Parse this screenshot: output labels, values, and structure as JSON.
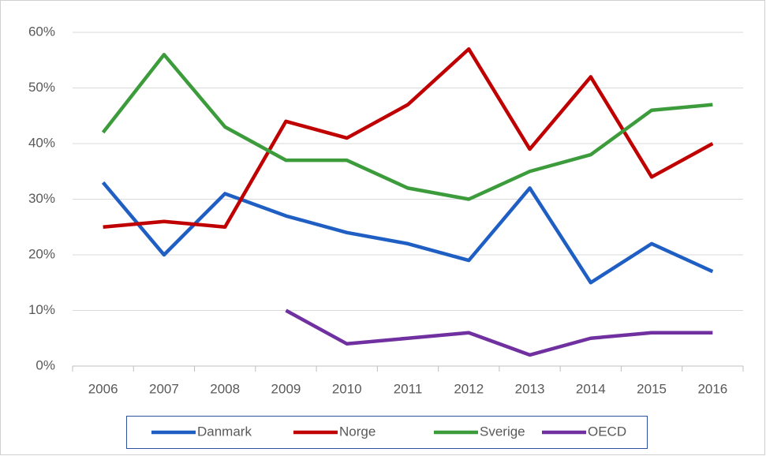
{
  "chart_data": {
    "type": "line",
    "categories": [
      "2006",
      "2007",
      "2008",
      "2009",
      "2010",
      "2011",
      "2012",
      "2013",
      "2014",
      "2015",
      "2016"
    ],
    "series": [
      {
        "name": "Danmark",
        "color": "#1f5fc4",
        "values": [
          33,
          20,
          31,
          27,
          24,
          22,
          19,
          32,
          15,
          22,
          17
        ]
      },
      {
        "name": "Norge",
        "color": "#c00000",
        "values": [
          25,
          26,
          25,
          44,
          41,
          47,
          57,
          39,
          52,
          34,
          40
        ]
      },
      {
        "name": "Sverige",
        "color": "#3c9c3c",
        "values": [
          42,
          56,
          43,
          37,
          37,
          32,
          30,
          35,
          38,
          46,
          47
        ]
      },
      {
        "name": "OECD",
        "color": "#7030a0",
        "values": [
          null,
          null,
          null,
          10,
          4,
          5,
          6,
          2,
          5,
          6,
          6
        ]
      }
    ],
    "ylim": [
      0,
      60
    ],
    "yticks": [
      {
        "value": 0,
        "label": "0%"
      },
      {
        "value": 10,
        "label": "10%"
      },
      {
        "value": 20,
        "label": "20%"
      },
      {
        "value": 30,
        "label": "30%"
      },
      {
        "value": 40,
        "label": "40%"
      },
      {
        "value": 50,
        "label": "50%"
      },
      {
        "value": 60,
        "label": "60%"
      }
    ],
    "grid": true,
    "legend": "bottom"
  }
}
